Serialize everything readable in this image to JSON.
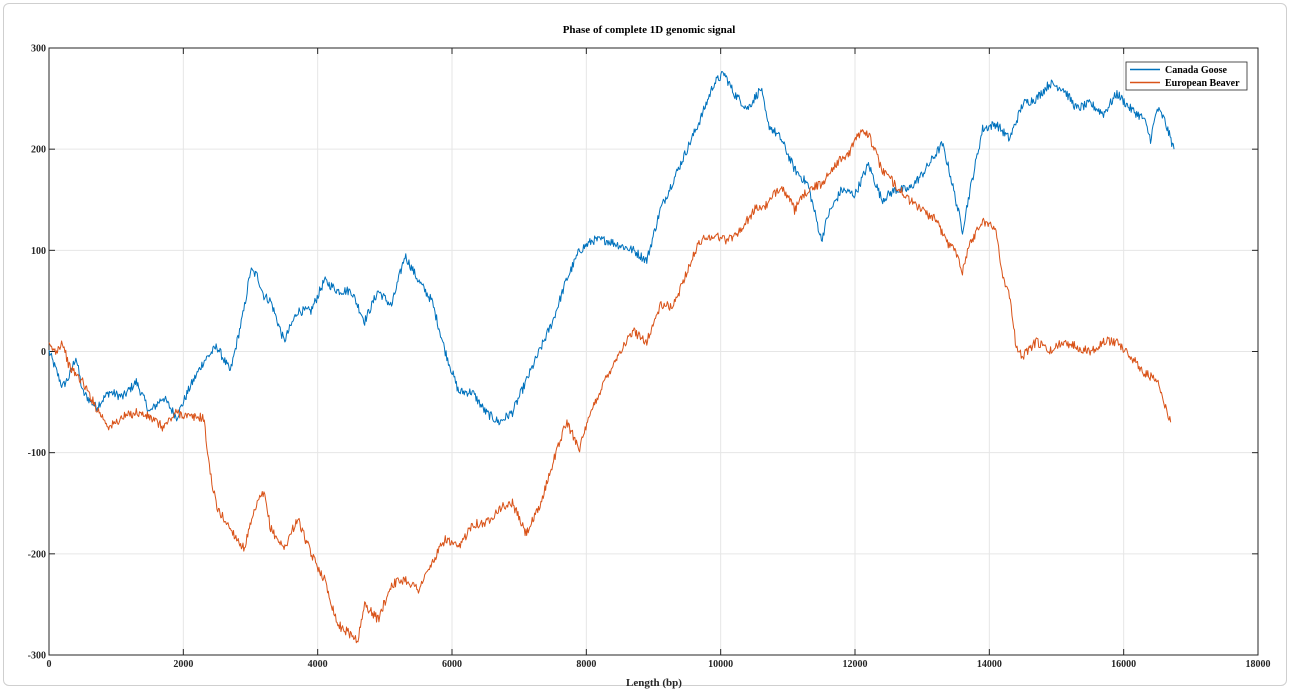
{
  "chart_data": {
    "type": "line",
    "title": "Phase of complete 1D genomic signal",
    "xlabel": "Length (bp)",
    "ylabel": "",
    "xlim": [
      0,
      18000
    ],
    "ylim": [
      -300,
      300
    ],
    "xticks": [
      0,
      2000,
      4000,
      6000,
      8000,
      10000,
      12000,
      14000,
      16000,
      18000
    ],
    "yticks": [
      -300,
      -200,
      -100,
      0,
      100,
      200,
      300
    ],
    "grid": true,
    "legend_position": "top-right",
    "series": [
      {
        "name": "Canada Goose",
        "color": "#0072BD",
        "x": [
          0,
          200,
          300,
          400,
          500,
          700,
          900,
          1100,
          1300,
          1500,
          1700,
          1900,
          2100,
          2300,
          2500,
          2700,
          2800,
          2900,
          3000,
          3100,
          3200,
          3300,
          3500,
          3700,
          3900,
          4100,
          4300,
          4500,
          4700,
          4900,
          5100,
          5300,
          5500,
          5700,
          5900,
          6100,
          6300,
          6500,
          6700,
          6900,
          7100,
          7300,
          7500,
          7700,
          7900,
          8100,
          8300,
          8500,
          8700,
          8900,
          9100,
          9300,
          9500,
          9700,
          9900,
          10050,
          10200,
          10400,
          10600,
          10700,
          10900,
          11100,
          11300,
          11500,
          11600,
          11800,
          12000,
          12200,
          12400,
          12600,
          12800,
          13000,
          13200,
          13300,
          13400,
          13600,
          13700,
          13900,
          14100,
          14300,
          14500,
          14700,
          14900,
          15100,
          15300,
          15500,
          15700,
          15900,
          16100,
          16300,
          16400,
          16500,
          16600,
          16750
        ],
        "y": [
          0,
          -35,
          -25,
          -5,
          -40,
          -55,
          -40,
          -45,
          -30,
          -60,
          -45,
          -65,
          -35,
          -10,
          5,
          -20,
          10,
          40,
          80,
          75,
          55,
          50,
          10,
          40,
          40,
          70,
          60,
          60,
          30,
          60,
          45,
          95,
          70,
          50,
          0,
          -40,
          -40,
          -60,
          -70,
          -60,
          -30,
          0,
          30,
          70,
          100,
          110,
          110,
          105,
          100,
          90,
          140,
          170,
          200,
          230,
          265,
          275,
          255,
          240,
          260,
          225,
          210,
          180,
          165,
          110,
          135,
          160,
          155,
          185,
          150,
          160,
          160,
          175,
          195,
          205,
          180,
          120,
          155,
          220,
          225,
          210,
          245,
          250,
          265,
          260,
          240,
          245,
          235,
          255,
          240,
          230,
          210,
          240,
          230,
          200
        ]
      },
      {
        "name": "European Beaver",
        "color": "#D95319",
        "x": [
          0,
          100,
          200,
          300,
          500,
          700,
          900,
          1100,
          1300,
          1500,
          1700,
          1900,
          2100,
          2300,
          2400,
          2500,
          2700,
          2900,
          3100,
          3200,
          3300,
          3500,
          3700,
          3900,
          4100,
          4300,
          4500,
          4600,
          4700,
          4900,
          5100,
          5300,
          5500,
          5700,
          5900,
          6100,
          6300,
          6500,
          6700,
          6900,
          7100,
          7300,
          7500,
          7700,
          7900,
          8100,
          8300,
          8500,
          8700,
          8900,
          9100,
          9300,
          9500,
          9700,
          9900,
          10100,
          10300,
          10500,
          10700,
          10900,
          11100,
          11300,
          11500,
          11700,
          11900,
          12100,
          12200,
          12400,
          12600,
          12800,
          13000,
          13200,
          13400,
          13500,
          13600,
          13700,
          13900,
          14100,
          14200,
          14300,
          14400,
          14500,
          14700,
          14900,
          15100,
          15300,
          15500,
          15700,
          15900,
          16100,
          16300,
          16500,
          16600,
          16700
        ],
        "y": [
          5,
          0,
          10,
          -15,
          -30,
          -55,
          -75,
          -65,
          -60,
          -65,
          -75,
          -60,
          -65,
          -65,
          -120,
          -155,
          -175,
          -195,
          -150,
          -140,
          -175,
          -195,
          -165,
          -200,
          -225,
          -270,
          -280,
          -285,
          -250,
          -265,
          -230,
          -225,
          -235,
          -210,
          -185,
          -195,
          -170,
          -170,
          -155,
          -150,
          -180,
          -155,
          -110,
          -70,
          -95,
          -55,
          -25,
          0,
          20,
          10,
          45,
          45,
          80,
          110,
          115,
          110,
          120,
          140,
          145,
          165,
          140,
          160,
          165,
          185,
          195,
          220,
          215,
          180,
          165,
          150,
          140,
          130,
          105,
          100,
          80,
          105,
          130,
          120,
          75,
          55,
          5,
          -5,
          10,
          0,
          10,
          5,
          0,
          10,
          10,
          -5,
          -20,
          -30,
          -50,
          -70
        ]
      }
    ]
  }
}
